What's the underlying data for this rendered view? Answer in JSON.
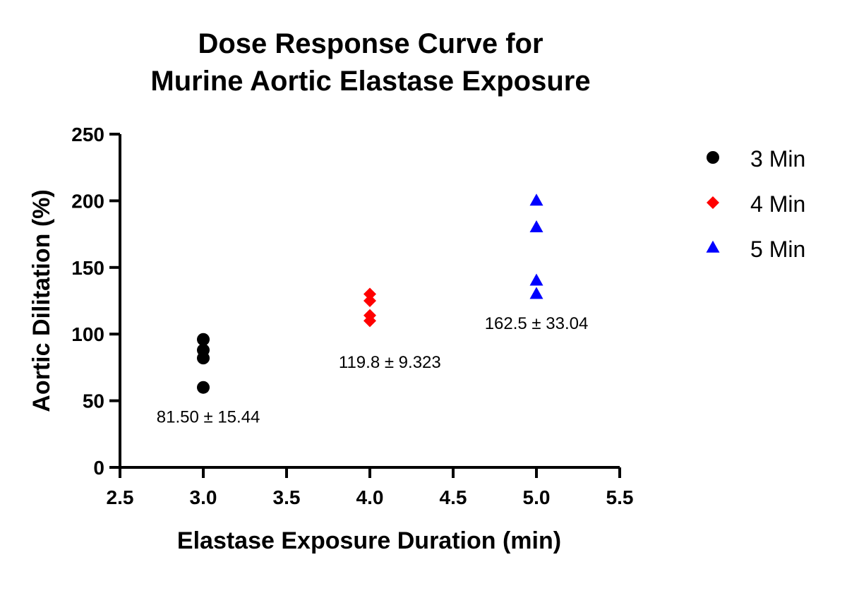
{
  "chart_data": {
    "type": "scatter",
    "title_lines": [
      "Dose Response Curve for",
      "Murine Aortic Elastase  Exposure"
    ],
    "xlabel": "Elastase Exposure Duration  (min)",
    "ylabel": "Aortic Dilitation (%)",
    "xlim": [
      2.5,
      5.5
    ],
    "ylim": [
      0,
      250
    ],
    "xticks": [
      "2.5",
      "3.0",
      "3.5",
      "4.0",
      "4.5",
      "5.0",
      "5.5"
    ],
    "yticks": [
      "0",
      "50",
      "100",
      "150",
      "200",
      "250"
    ],
    "grid": false,
    "legend_position": "right",
    "series": [
      {
        "name": "3 Min",
        "marker": "circle",
        "color": "#000000",
        "points": [
          [
            3.0,
            96
          ],
          [
            3.0,
            88
          ],
          [
            3.0,
            82
          ],
          [
            3.0,
            60
          ]
        ]
      },
      {
        "name": "4 Min",
        "marker": "diamond",
        "color": "#ff0000",
        "points": [
          [
            4.0,
            130
          ],
          [
            4.0,
            125
          ],
          [
            4.0,
            114
          ],
          [
            4.0,
            110
          ]
        ]
      },
      {
        "name": "5  Min",
        "marker": "triangle",
        "color": "#0000ff",
        "points": [
          [
            5.0,
            200
          ],
          [
            5.0,
            180
          ],
          [
            5.0,
            140
          ],
          [
            5.0,
            130
          ]
        ]
      }
    ],
    "annotations": [
      {
        "text": "81.50 ± 15.44",
        "x": 3.03,
        "y": 38
      },
      {
        "text": "119.8 ± 9.323",
        "x": 4.12,
        "y": 79
      },
      {
        "text": "162.5 ± 33.04",
        "x": 5.0,
        "y": 108
      }
    ]
  }
}
